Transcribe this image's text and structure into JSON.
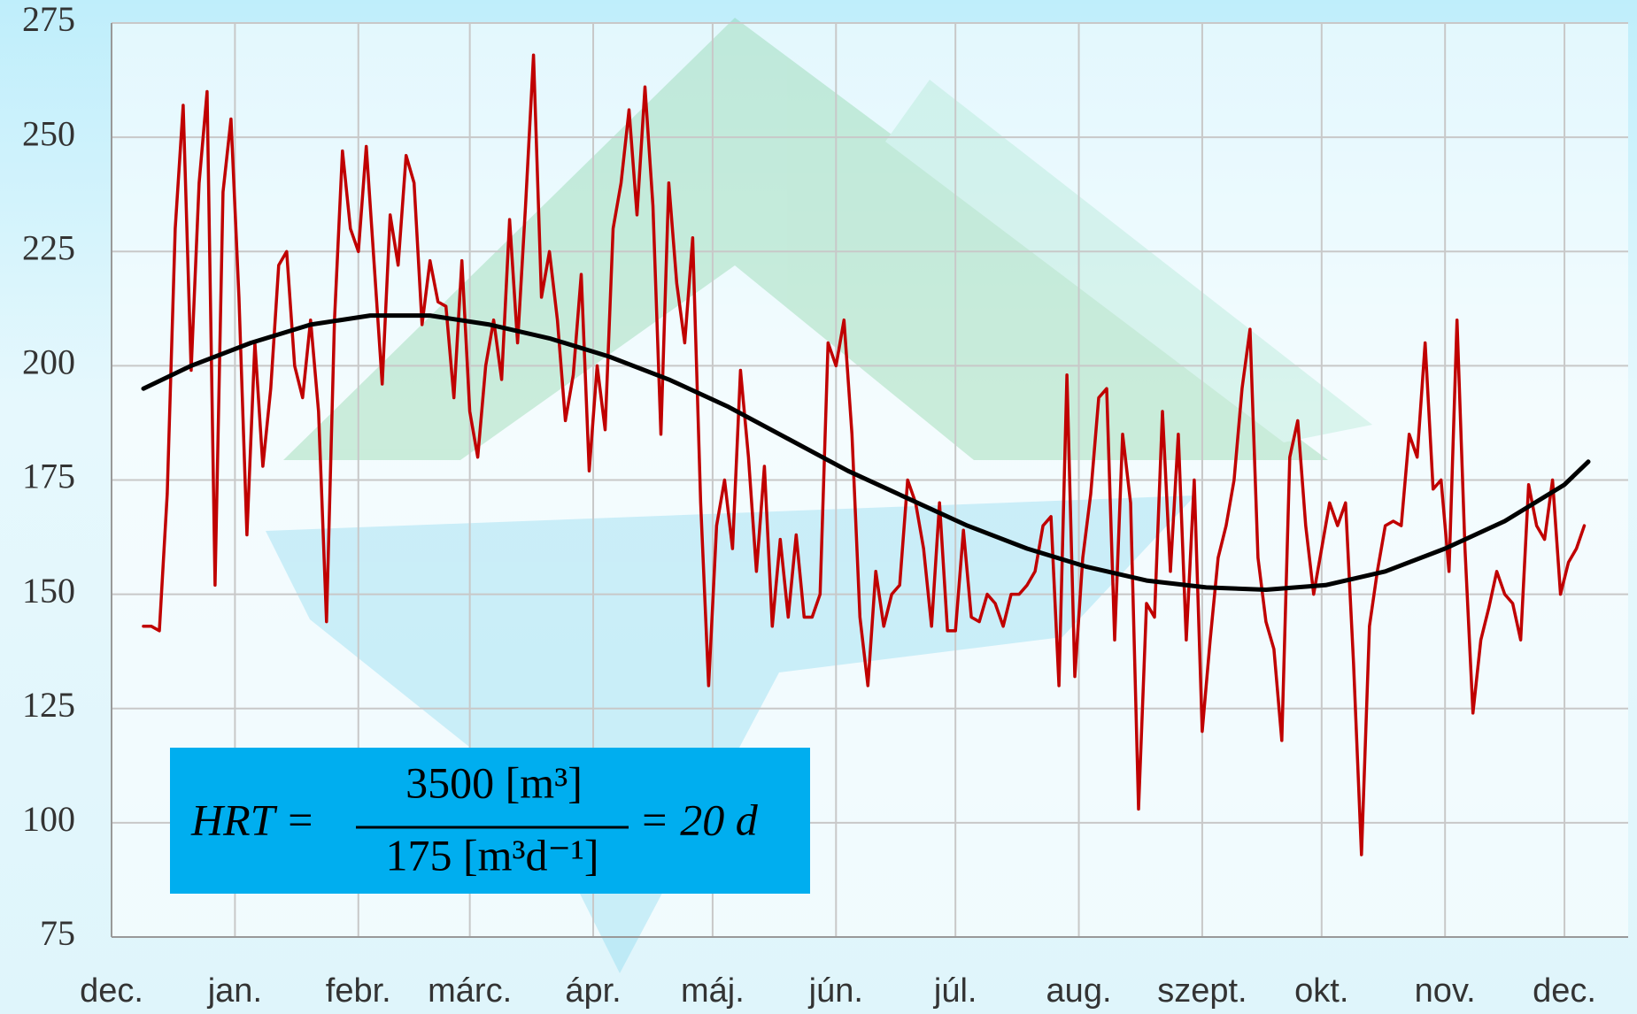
{
  "chart_data": {
    "type": "line",
    "xlim": [
      0,
      381
    ],
    "xticks": [
      {
        "value": 0,
        "label": "dec."
      },
      {
        "value": 31,
        "label": "jan."
      },
      {
        "value": 62,
        "label": "febr."
      },
      {
        "value": 90,
        "label": "márc."
      },
      {
        "value": 121,
        "label": "ápr."
      },
      {
        "value": 151,
        "label": "máj."
      },
      {
        "value": 182,
        "label": "jún."
      },
      {
        "value": 212,
        "label": "júl."
      },
      {
        "value": 243,
        "label": "aug."
      },
      {
        "value": 274,
        "label": "szept."
      },
      {
        "value": 304,
        "label": "okt."
      },
      {
        "value": 335,
        "label": "nov."
      },
      {
        "value": 365,
        "label": "dec."
      }
    ],
    "ylim": [
      75,
      275
    ],
    "yticks": [
      75,
      100,
      125,
      150,
      175,
      200,
      225,
      250,
      275
    ],
    "grid": true,
    "series": [
      {
        "color": "#c00000",
        "x": [
          8,
          10,
          12,
          14,
          16,
          18,
          20,
          22,
          24,
          26,
          28,
          30,
          32,
          34,
          36,
          38,
          40,
          42,
          44,
          46,
          48,
          50,
          52,
          54,
          56,
          58,
          60,
          62,
          64,
          66,
          68,
          70,
          72,
          74,
          76,
          78,
          80,
          82,
          84,
          86,
          88,
          90,
          92,
          94,
          96,
          98,
          100,
          102,
          104,
          106,
          108,
          110,
          112,
          114,
          116,
          118,
          120,
          122,
          124,
          126,
          128,
          130,
          132,
          134,
          136,
          138,
          140,
          142,
          144,
          146,
          148,
          150,
          152,
          154,
          156,
          158,
          160,
          162,
          164,
          166,
          168,
          170,
          172,
          174,
          176,
          178,
          180,
          182,
          184,
          186,
          188,
          190,
          192,
          194,
          196,
          198,
          200,
          202,
          204,
          206,
          208,
          210,
          212,
          214,
          216,
          218,
          220,
          222,
          224,
          226,
          228,
          230,
          232,
          234,
          236,
          238,
          240,
          242,
          244,
          246,
          248,
          250,
          252,
          254,
          256,
          258,
          260,
          262,
          264,
          266,
          268,
          270,
          272,
          274,
          276,
          278,
          280,
          282,
          284,
          286,
          288,
          290,
          292,
          294,
          296,
          298,
          300,
          302,
          304,
          306,
          308,
          310,
          312,
          314,
          316,
          318,
          320,
          322,
          324,
          326,
          328,
          330,
          332,
          334,
          336,
          338,
          340,
          342,
          344,
          346,
          348,
          350,
          352,
          354,
          356,
          358,
          360,
          362,
          364,
          366,
          368,
          370
        ],
        "values": [
          143,
          143,
          142,
          172,
          230,
          257,
          199,
          240,
          260,
          152,
          238,
          254,
          215,
          163,
          205,
          178,
          195,
          222,
          225,
          200,
          193,
          210,
          190,
          144,
          210,
          247,
          230,
          225,
          248,
          222,
          196,
          233,
          222,
          246,
          240,
          209,
          223,
          214,
          213,
          193,
          223,
          190,
          180,
          200,
          210,
          197,
          232,
          205,
          235,
          268,
          215,
          225,
          210,
          188,
          198,
          220,
          177,
          200,
          186,
          230,
          240,
          256,
          233,
          261,
          235,
          185,
          240,
          218,
          205,
          228,
          170,
          130,
          165,
          175,
          160,
          199,
          180,
          155,
          178,
          143,
          162,
          145,
          163,
          145,
          145,
          150,
          205,
          200,
          210,
          185,
          145,
          130,
          155,
          143,
          150,
          152,
          175,
          170,
          160,
          143,
          170,
          142,
          142,
          164,
          145,
          144,
          150,
          148,
          143,
          150,
          150,
          152,
          155,
          165,
          167,
          130,
          198,
          132,
          158,
          172,
          193,
          195,
          140,
          185,
          170,
          103,
          148,
          145,
          190,
          155,
          185,
          140,
          175,
          120,
          140,
          158,
          165,
          175,
          195,
          208,
          158,
          144,
          138,
          118,
          180,
          188,
          165,
          150,
          160,
          170,
          165,
          170,
          135,
          93,
          143,
          155,
          165,
          166,
          165,
          185,
          180,
          205,
          173,
          175,
          155,
          210,
          160,
          124,
          140,
          147,
          155,
          150,
          148,
          140,
          174,
          165,
          162,
          175,
          150,
          157,
          160,
          165
        ]
      },
      {
        "color": "#000000",
        "x": [
          8,
          20,
          35,
          50,
          65,
          80,
          95,
          110,
          125,
          140,
          155,
          170,
          185,
          200,
          215,
          230,
          245,
          260,
          275,
          290,
          305,
          320,
          335,
          350,
          365,
          371
        ],
        "values": [
          195,
          200,
          205,
          209,
          211,
          211,
          209,
          206,
          202,
          197,
          191,
          184,
          177,
          171,
          165,
          160,
          156,
          153,
          151.5,
          151,
          152,
          155,
          160,
          166,
          174,
          179
        ]
      }
    ],
    "annotation": {
      "lhs": "HRT =",
      "numerator": "3500 [m³]",
      "denominator": "175 [m³d⁻¹]",
      "rhs": "= 20 d"
    }
  }
}
